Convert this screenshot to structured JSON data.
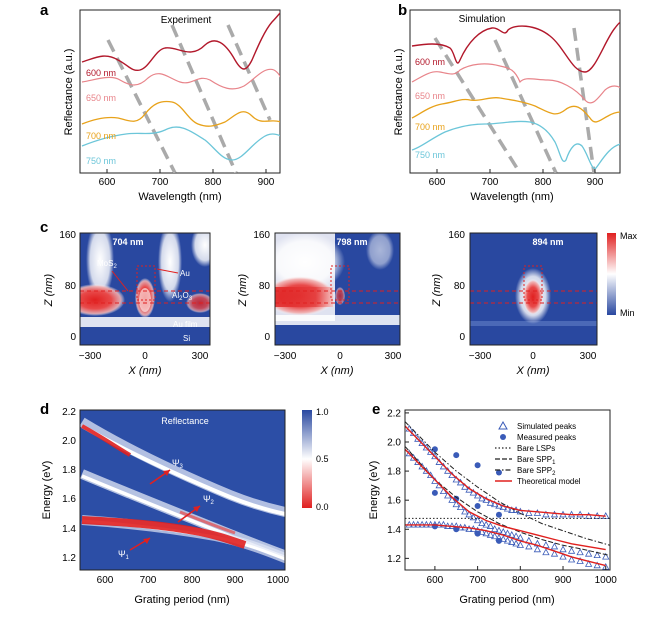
{
  "panel_labels": {
    "a": "a",
    "b": "b",
    "c": "c",
    "d": "d",
    "e": "e"
  },
  "colors": {
    "dark_red": "#b2182b",
    "pink": "#e8848a",
    "orange": "#e8a21a",
    "cyan": "#6cc6d9",
    "dashed_gray": "#aaaaaa",
    "map_blue": "#2948a0",
    "map_red": "#e02020",
    "theory_red": "#e0201e",
    "marker_blue": "#3a5bb8"
  },
  "panel_a": {
    "title": "Experiment",
    "ylabel": "Reflectance (a.u.)",
    "xlabel": "Wavelength (nm)",
    "xticks": [
      "600",
      "700",
      "800",
      "900"
    ],
    "series_labels": [
      "600 nm",
      "650 nm",
      "700 nm",
      "750 nm"
    ]
  },
  "panel_b": {
    "title": "Simulation",
    "ylabel": "Reflectance (a.u.)",
    "xlabel": "Wavelength (nm)",
    "xticks": [
      "600",
      "700",
      "800",
      "900"
    ],
    "series_labels": [
      "600 nm",
      "650 nm",
      "700 nm",
      "750 nm"
    ]
  },
  "panel_c": {
    "ylabel": "Z (nm)",
    "xlabel": "X (nm)",
    "yticks": [
      "0",
      "80",
      "160"
    ],
    "xticks": [
      "−300",
      "0",
      "300"
    ],
    "maps": [
      {
        "title": "704 nm",
        "labels": {
          "mos2": "MoS",
          "mos2_sub": "2",
          "au": "Au",
          "al2o3": "Al",
          "al2o3_sub1": "2",
          "al2o3_o": "O",
          "al2o3_sub2": "3",
          "aufilm": "Au film",
          "si": "Si"
        }
      },
      {
        "title": "798 nm"
      },
      {
        "title": "894 nm"
      }
    ],
    "colorbar": {
      "max": "Max",
      "min": "Min"
    }
  },
  "panel_d": {
    "title": "Reflectance",
    "xlabel": "Grating period (nm)",
    "ylabel": "Energy (eV)",
    "xticks": [
      "600",
      "700",
      "800",
      "900",
      "1000"
    ],
    "yticks": [
      "1.2",
      "1.4",
      "1.6",
      "1.8",
      "2.0",
      "2.2"
    ],
    "colorbar_ticks": [
      "1.0",
      "0.5",
      "0.0"
    ],
    "psi_labels": [
      {
        "psi": "Ψ",
        "sub": "3"
      },
      {
        "psi": "Ψ",
        "sub": "2"
      },
      {
        "psi": "Ψ",
        "sub": "1"
      }
    ]
  },
  "chart_data": {
    "type": "scatter",
    "title": "",
    "xlabel": "Grating period (nm)",
    "ylabel": "Energy (eV)",
    "xlim": [
      530,
      1010
    ],
    "ylim": [
      1.12,
      2.22
    ],
    "xticks": [
      "600",
      "700",
      "800",
      "900",
      "1000"
    ],
    "yticks": [
      "1.2",
      "1.4",
      "1.6",
      "1.8",
      "2.0",
      "2.2"
    ],
    "legend": [
      "Simulated peaks",
      "Measured peaks",
      "Bare LSPs",
      "Bare SPP",
      "Bare SPP",
      "Theoretical model"
    ],
    "legend_subscripts": [
      "",
      "",
      "",
      "1",
      "2",
      ""
    ],
    "series": [
      {
        "name": "Simulated peaks",
        "kind": "triangle",
        "x": [
          540,
          550,
          560,
          570,
          580,
          590,
          600,
          610,
          620,
          630,
          640,
          650,
          660,
          670,
          680,
          690,
          700,
          710,
          720,
          730,
          740,
          750,
          760,
          770,
          780,
          790,
          800,
          820,
          840,
          860,
          880,
          900,
          920,
          940,
          960,
          980,
          1000,
          540,
          550,
          560,
          570,
          580,
          590,
          600,
          610,
          620,
          630,
          640,
          650,
          660,
          670,
          680,
          690,
          700,
          710,
          720,
          730,
          740,
          750,
          760,
          770,
          780,
          790,
          800,
          820,
          840,
          860,
          880,
          900,
          920,
          940,
          960,
          980,
          1000,
          540,
          550,
          560,
          570,
          580,
          590,
          600,
          610,
          620,
          630,
          640,
          650,
          660,
          670,
          680,
          690,
          700,
          710,
          720,
          730,
          740,
          750,
          760,
          770,
          780,
          790,
          800,
          820,
          840,
          860,
          880,
          900,
          920,
          940,
          960,
          980,
          1000
        ],
        "y": [
          2.09,
          2.06,
          2.02,
          1.99,
          1.96,
          1.93,
          1.9,
          1.86,
          1.83,
          1.8,
          1.77,
          1.74,
          1.72,
          1.69,
          1.67,
          1.65,
          1.63,
          1.61,
          1.6,
          1.58,
          1.57,
          1.56,
          1.55,
          1.54,
          1.53,
          1.53,
          1.52,
          1.51,
          1.51,
          1.5,
          1.5,
          1.5,
          1.5,
          1.5,
          1.49,
          1.49,
          1.49,
          1.92,
          1.89,
          1.86,
          1.83,
          1.8,
          1.77,
          1.73,
          1.7,
          1.66,
          1.63,
          1.6,
          1.57,
          1.55,
          1.52,
          1.5,
          1.48,
          1.46,
          1.44,
          1.43,
          1.42,
          1.4,
          1.39,
          1.38,
          1.37,
          1.36,
          1.35,
          1.34,
          1.32,
          1.3,
          1.29,
          1.28,
          1.26,
          1.25,
          1.24,
          1.23,
          1.22,
          1.21,
          1.43,
          1.43,
          1.43,
          1.43,
          1.43,
          1.43,
          1.43,
          1.43,
          1.43,
          1.42,
          1.42,
          1.42,
          1.41,
          1.41,
          1.4,
          1.4,
          1.39,
          1.38,
          1.37,
          1.36,
          1.35,
          1.34,
          1.33,
          1.32,
          1.31,
          1.3,
          1.29,
          1.28,
          1.26,
          1.24,
          1.23,
          1.21,
          1.19,
          1.18,
          1.16,
          1.15,
          1.14
        ]
      },
      {
        "name": "Measured peaks",
        "kind": "dot",
        "x": [
          600,
          600,
          600,
          650,
          650,
          650,
          700,
          700,
          700,
          750,
          750,
          750
        ],
        "y": [
          1.95,
          1.65,
          1.42,
          1.91,
          1.61,
          1.4,
          1.84,
          1.56,
          1.37,
          1.79,
          1.5,
          1.32
        ]
      },
      {
        "name": "Bare LSPs",
        "kind": "dotted",
        "x": [
          530,
          1010
        ],
        "y": [
          1.475,
          1.475
        ]
      },
      {
        "name": "Bare SPP1",
        "kind": "dashed",
        "x": [
          530,
          600,
          650,
          700,
          750,
          800,
          850,
          900,
          950,
          1010
        ],
        "y": [
          1.97,
          1.74,
          1.62,
          1.52,
          1.44,
          1.38,
          1.33,
          1.29,
          1.26,
          1.22
        ]
      },
      {
        "name": "Bare SPP2",
        "kind": "dashdot",
        "x": [
          530,
          600,
          650,
          700,
          750,
          800,
          850,
          900,
          950,
          1010
        ],
        "y": [
          2.14,
          1.93,
          1.8,
          1.69,
          1.59,
          1.51,
          1.44,
          1.39,
          1.34,
          1.29
        ]
      },
      {
        "name": "Theoretical model",
        "kind": "line",
        "x": [
          530,
          560,
          600,
          640,
          680,
          720,
          760,
          800,
          840,
          880,
          920,
          960,
          1000
        ],
        "y": [
          2.11,
          2.02,
          1.9,
          1.78,
          1.68,
          1.61,
          1.56,
          1.53,
          1.52,
          1.51,
          1.5,
          1.5,
          1.49
        ]
      },
      {
        "name": "Theoretical model",
        "kind": "line",
        "x": [
          530,
          560,
          600,
          640,
          680,
          720,
          760,
          800,
          840,
          880,
          920,
          960,
          1000
        ],
        "y": [
          1.95,
          1.86,
          1.74,
          1.62,
          1.52,
          1.46,
          1.42,
          1.39,
          1.36,
          1.33,
          1.3,
          1.28,
          1.26
        ]
      },
      {
        "name": "Theoretical model",
        "kind": "line",
        "x": [
          530,
          560,
          600,
          640,
          680,
          720,
          760,
          800,
          840,
          880,
          920,
          960,
          1000
        ],
        "y": [
          1.43,
          1.43,
          1.43,
          1.42,
          1.41,
          1.39,
          1.36,
          1.32,
          1.29,
          1.25,
          1.21,
          1.18,
          1.15
        ]
      }
    ]
  }
}
